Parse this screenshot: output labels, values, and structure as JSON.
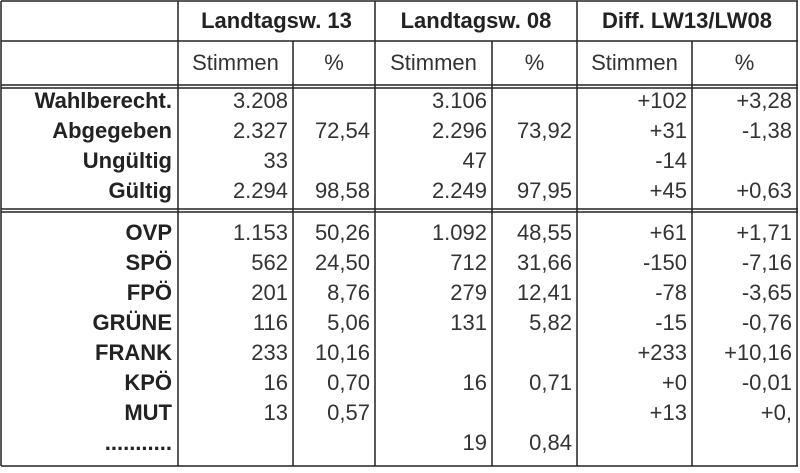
{
  "table": {
    "groups": [
      "Landtagsw. 13",
      "Landtagsw. 08",
      "Diff. LW13/LW08"
    ],
    "subheaders": [
      "Stimmen",
      "%",
      "Stimmen",
      "%",
      "Stimmen",
      "%"
    ],
    "rows": [
      {
        "label": "Wahlberecht.",
        "cells": [
          "3.208",
          null,
          "3.106",
          null,
          "+102",
          "+3,28"
        ]
      },
      {
        "label": "Abgegeben",
        "cells": [
          "2.327",
          "72,54",
          "2.296",
          "73,92",
          "+31",
          "-1,38"
        ]
      },
      {
        "label": "Ungültig",
        "cells": [
          "33",
          null,
          "47",
          null,
          "-14",
          null
        ]
      },
      {
        "label": "Gültig",
        "cells": [
          "2.294",
          "98,58",
          "2.249",
          "97,95",
          "+45",
          "+0,63"
        ]
      },
      {
        "label": "OVP",
        "cells": [
          "1.153",
          "50,26",
          "1.092",
          "48,55",
          "+61",
          "+1,71"
        ]
      },
      {
        "label": "SPÖ",
        "cells": [
          "562",
          "24,50",
          "712",
          "31,66",
          "-150",
          "-7,16"
        ]
      },
      {
        "label": "FPÖ",
        "cells": [
          "201",
          "8,76",
          "279",
          "12,41",
          "-78",
          "-3,65"
        ]
      },
      {
        "label": "GRÜNE",
        "cells": [
          "116",
          "5,06",
          "131",
          "5,82",
          "-15",
          "-0,76"
        ]
      },
      {
        "label": "FRANK",
        "cells": [
          "233",
          "10,16",
          null,
          null,
          "+233",
          "+10,16"
        ]
      },
      {
        "label": "KPÖ",
        "cells": [
          "16",
          "0,70",
          "16",
          "0,71",
          "+0",
          "-0,01"
        ]
      },
      {
        "label": "MUT",
        "cells": [
          "13",
          "0,57",
          null,
          null,
          "+13",
          "+0,"
        ]
      },
      {
        "label": "...........",
        "cells": [
          null,
          null,
          "19",
          "0,84",
          null,
          null
        ]
      }
    ]
  }
}
